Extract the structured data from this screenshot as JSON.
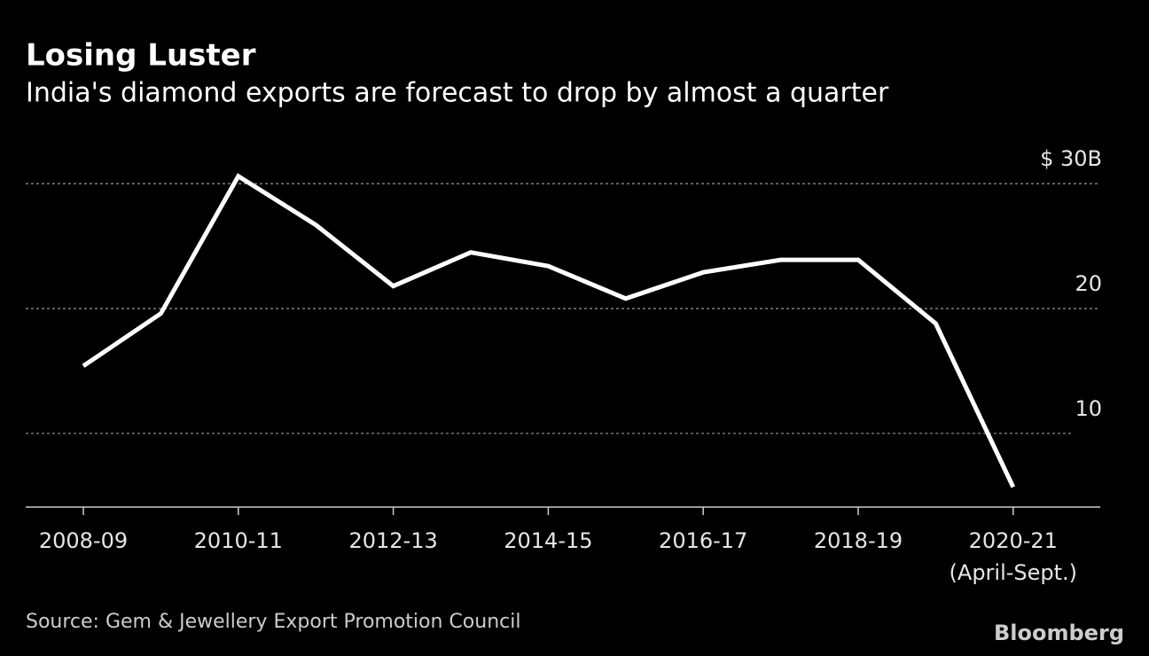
{
  "chart_data": {
    "type": "line",
    "title": "Losing Luster",
    "subtitle": "India's diamond exports are forecast to drop by almost a quarter",
    "categories": [
      "2008-09",
      null,
      "2010-11",
      null,
      "2012-13",
      null,
      "2014-15",
      null,
      "2016-17",
      null,
      "2018-19",
      null,
      "2020-21"
    ],
    "category_note": "(April-Sept.)",
    "values": [
      15.4,
      19.6,
      30.6,
      26.7,
      21.8,
      24.5,
      23.4,
      20.8,
      22.9,
      23.9,
      23.9,
      18.8,
      5.7
    ],
    "color": "#ffffff",
    "ylim": [
      4.1,
      32.5
    ],
    "yticks": [
      10,
      20,
      {
        "value": 30,
        "label": "$ 30B"
      }
    ],
    "grid": true,
    "source": "Source: Gem & Jewellery Export Promotion Council",
    "brand": "Bloomberg"
  }
}
